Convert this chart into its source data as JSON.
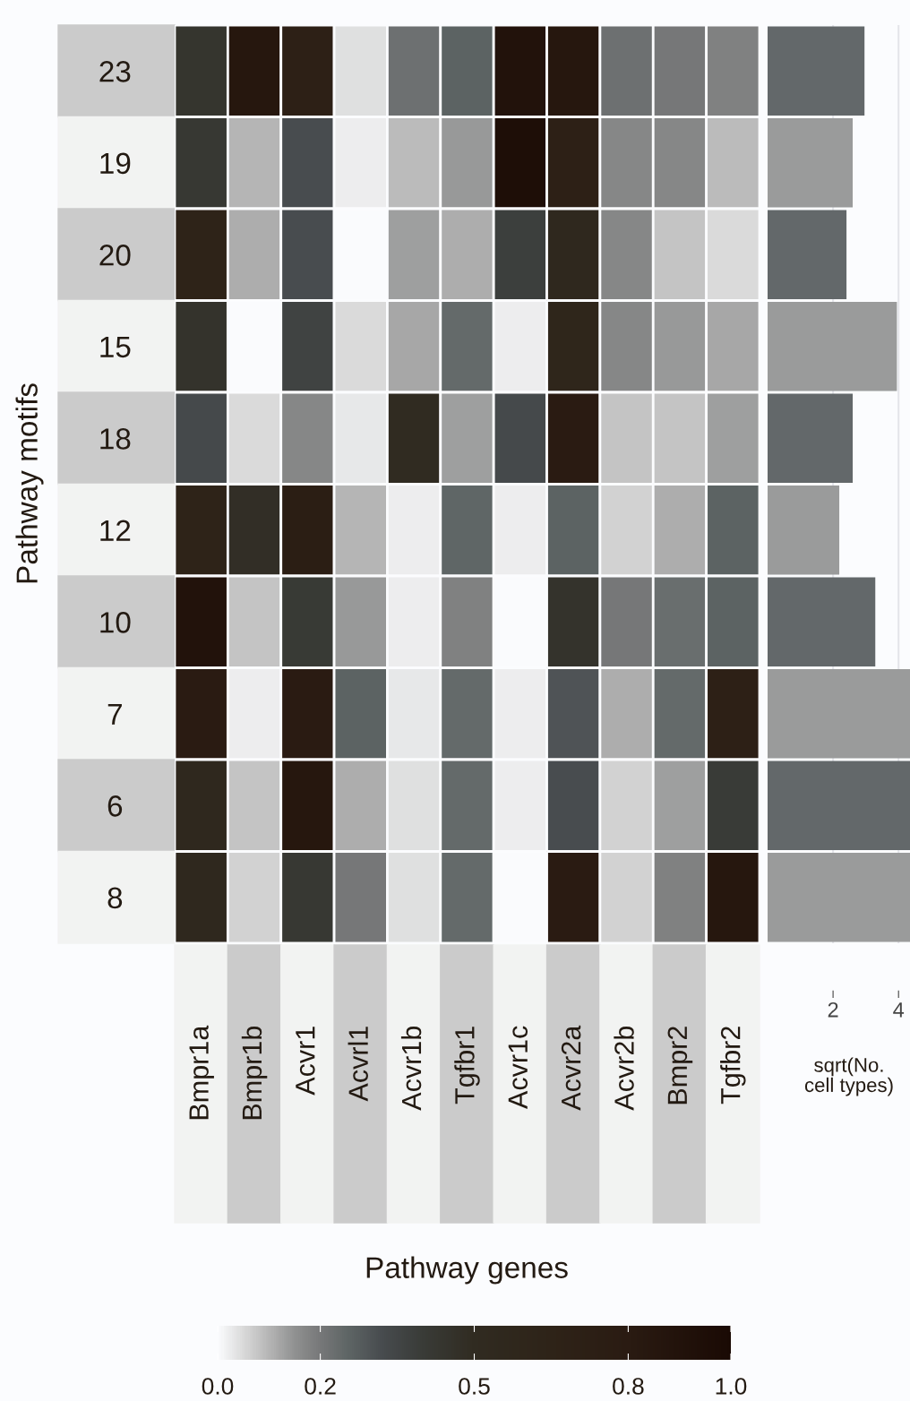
{
  "chart_data": [
    {
      "type": "heatmap",
      "xlabel": "Pathway genes",
      "ylabel": "Pathway motifs",
      "categories": [
        "Bmpr1a",
        "Bmpr1b",
        "Acvr1",
        "Acvrl1",
        "Acvr1b",
        "Tgfbr1",
        "Acvr1c",
        "Acvr2a",
        "Acvr2b",
        "Bmpr2",
        "Tgfbr2"
      ],
      "y_categories": [
        "23",
        "19",
        "20",
        "15",
        "18",
        "12",
        "10",
        "7",
        "6",
        "8"
      ],
      "cells": [
        [
          0.44,
          0.85,
          0.7,
          0.04,
          0.22,
          0.26,
          0.9,
          0.85,
          0.22,
          0.2,
          0.18
        ],
        [
          0.42,
          0.1,
          0.32,
          0.02,
          0.09,
          0.14,
          0.95,
          0.7,
          0.17,
          0.17,
          0.09
        ],
        [
          0.65,
          0.11,
          0.32,
          0.0,
          0.13,
          0.11,
          0.38,
          0.55,
          0.17,
          0.08,
          0.05
        ],
        [
          0.45,
          0.0,
          0.36,
          0.05,
          0.12,
          0.24,
          0.02,
          0.6,
          0.17,
          0.14,
          0.12
        ],
        [
          0.33,
          0.05,
          0.17,
          0.03,
          0.5,
          0.13,
          0.33,
          0.8,
          0.08,
          0.08,
          0.13
        ],
        [
          0.65,
          0.48,
          0.75,
          0.1,
          0.02,
          0.25,
          0.02,
          0.26,
          0.06,
          0.11,
          0.26
        ],
        [
          0.9,
          0.08,
          0.41,
          0.14,
          0.02,
          0.18,
          0.0,
          0.45,
          0.2,
          0.23,
          0.26
        ],
        [
          0.8,
          0.02,
          0.8,
          0.26,
          0.03,
          0.24,
          0.02,
          0.3,
          0.11,
          0.24,
          0.7
        ],
        [
          0.55,
          0.08,
          0.85,
          0.11,
          0.04,
          0.24,
          0.02,
          0.32,
          0.06,
          0.13,
          0.4
        ],
        [
          0.55,
          0.06,
          0.42,
          0.2,
          0.04,
          0.24,
          0.0,
          0.8,
          0.06,
          0.18,
          0.85
        ]
      ],
      "clim": [
        0,
        1
      ],
      "cticks": [
        {
          "value": 0,
          "label": "0.0"
        },
        {
          "value": 0.2,
          "label": "0.2"
        },
        {
          "value": 0.5,
          "label": "0.5"
        },
        {
          "value": 0.8,
          "label": "0.8"
        },
        {
          "value": 1,
          "label": "1.0"
        }
      ]
    },
    {
      "type": "bar",
      "orientation": "horizontal",
      "xlabel": "sqrt(No.\ncell types)",
      "categories": [
        "23",
        "19",
        "20",
        "15",
        "18",
        "12",
        "10",
        "7",
        "6",
        "8"
      ],
      "values": [
        2.96,
        2.6,
        2.41,
        3.95,
        2.6,
        2.19,
        3.29,
        4.35,
        4.35,
        4.35
      ],
      "colors": [
        "#63686a",
        "#9a9b9b",
        "#63686a",
        "#9a9b9b",
        "#63686a",
        "#9a9b9b",
        "#63686a",
        "#9a9b9b",
        "#63686a",
        "#9a9b9b"
      ],
      "xlim": [
        0,
        4.35
      ],
      "xticks": [
        2,
        4
      ],
      "grid": "x",
      "tick_labels": "x"
    }
  ]
}
